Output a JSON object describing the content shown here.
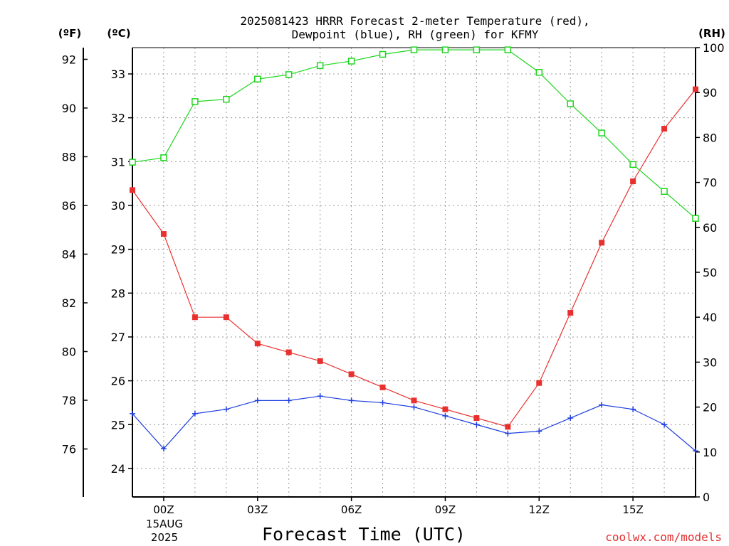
{
  "chart_data": {
    "type": "line",
    "title_line1": "2025081423 HRRR Forecast 2-meter Temperature (red),",
    "title_line2": "Dewpoint (blue), RH (green) for KFMY",
    "xlabel": "Forecast Time (UTC)",
    "watermark": "coolwx.com/models",
    "unit_left_f": "(ºF)",
    "unit_left_c": "(ºC)",
    "unit_right_rh": "(RH)",
    "x_hours": [
      -1,
      0,
      1,
      2,
      3,
      4,
      5,
      6,
      7,
      8,
      9,
      10,
      11,
      12,
      13,
      14,
      15,
      16,
      17
    ],
    "xlim": [
      -1,
      17
    ],
    "x_ticks": [
      {
        "hour": 0,
        "label": "00Z"
      },
      {
        "hour": 3,
        "label": "03Z"
      },
      {
        "hour": 6,
        "label": "06Z"
      },
      {
        "hour": 9,
        "label": "09Z"
      },
      {
        "hour": 12,
        "label": "12Z"
      },
      {
        "hour": 15,
        "label": "15Z"
      }
    ],
    "date_label": [
      "15AUG",
      "2025"
    ],
    "celsius_axis": {
      "ylim": [
        23.35,
        33.6
      ],
      "ticks": [
        24,
        25,
        26,
        27,
        28,
        29,
        30,
        31,
        32,
        33
      ]
    },
    "fahrenheit_axis": {
      "ticks": [
        76,
        78,
        80,
        82,
        84,
        86,
        88,
        90,
        92
      ]
    },
    "rh_axis": {
      "ylim": [
        0,
        100
      ],
      "ticks": [
        0,
        10,
        20,
        30,
        40,
        50,
        60,
        70,
        80,
        90,
        100
      ]
    },
    "grid": true,
    "series": [
      {
        "key": "temperature",
        "color": "#e8312f",
        "marker": "filled-square",
        "axis": "celsius",
        "values": [
          30.35,
          29.35,
          27.45,
          27.45,
          26.85,
          26.65,
          26.45,
          26.15,
          25.85,
          25.55,
          25.35,
          25.15,
          24.95,
          25.95,
          27.55,
          29.15,
          30.55,
          31.75,
          32.65
        ]
      },
      {
        "key": "dewpoint",
        "color": "#1f3fe0",
        "marker": "plus",
        "axis": "celsius",
        "values": [
          25.25,
          24.45,
          25.25,
          25.35,
          25.55,
          25.55,
          25.65,
          25.55,
          25.5,
          25.4,
          25.2,
          25.0,
          24.8,
          24.85,
          25.15,
          25.45,
          25.35,
          25.0,
          24.4
        ]
      },
      {
        "key": "rh",
        "color": "#1ed61e",
        "marker": "open-square",
        "axis": "rh",
        "values": [
          74.5,
          75.5,
          88,
          88.5,
          93,
          94,
          96,
          97,
          98.5,
          99.5,
          99.5,
          99.5,
          99.5,
          94.5,
          87.5,
          81,
          74,
          68,
          62
        ]
      }
    ]
  }
}
